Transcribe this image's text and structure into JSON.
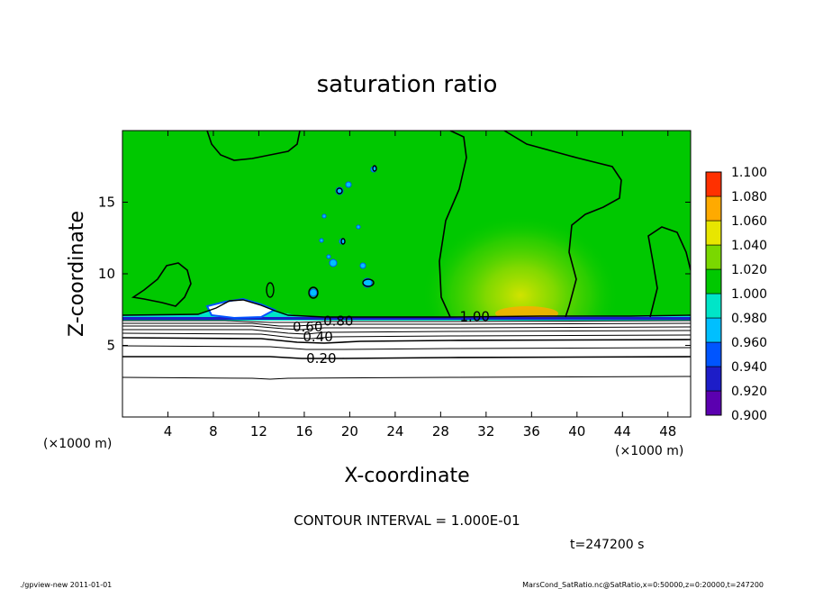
{
  "chart_data": {
    "type": "heatmap",
    "title": "saturation ratio",
    "xlabel": "X-coordinate",
    "ylabel": "Z-coordinate",
    "x_unit_left": "(×1000 m)",
    "x_unit_right": "(×1000 m)",
    "xlim": [
      0,
      50
    ],
    "ylim": [
      0,
      20
    ],
    "x_ticks": [
      4,
      8,
      12,
      16,
      20,
      24,
      28,
      32,
      36,
      40,
      44,
      48
    ],
    "y_ticks": [
      5,
      10,
      15
    ],
    "colorbar": {
      "levels": [
        "0.900",
        "0.920",
        "0.940",
        "0.960",
        "0.980",
        "1.000",
        "1.020",
        "1.040",
        "1.060",
        "1.080",
        "1.100"
      ],
      "colors": [
        "#5b00b0",
        "#1d1dc8",
        "#0055ff",
        "#00bfff",
        "#00e5c8",
        "#00c800",
        "#7ad800",
        "#e8e600",
        "#ffaa00",
        "#ff3000",
        "#ff7070"
      ]
    },
    "contour_labels": [
      {
        "text": "0.20",
        "x": 17.5,
        "z": 4.1
      },
      {
        "text": "0.40",
        "x": 17.2,
        "z": 5.6
      },
      {
        "text": "0.60",
        "x": 16.3,
        "z": 6.3
      },
      {
        "text": "0.80",
        "x": 19.0,
        "z": 6.7
      },
      {
        "text": "1.00",
        "x": 31.0,
        "z": 7.0
      }
    ],
    "contour_interval": "CONTOUR INTERVAL = 1.000E-01",
    "time": "t=247200 s"
  },
  "footer": {
    "left": "./gpview-new  2011-01-01",
    "right": "MarsCond_SatRatio.nc@SatRatio,x=0:50000,z=0:20000,t=247200"
  }
}
